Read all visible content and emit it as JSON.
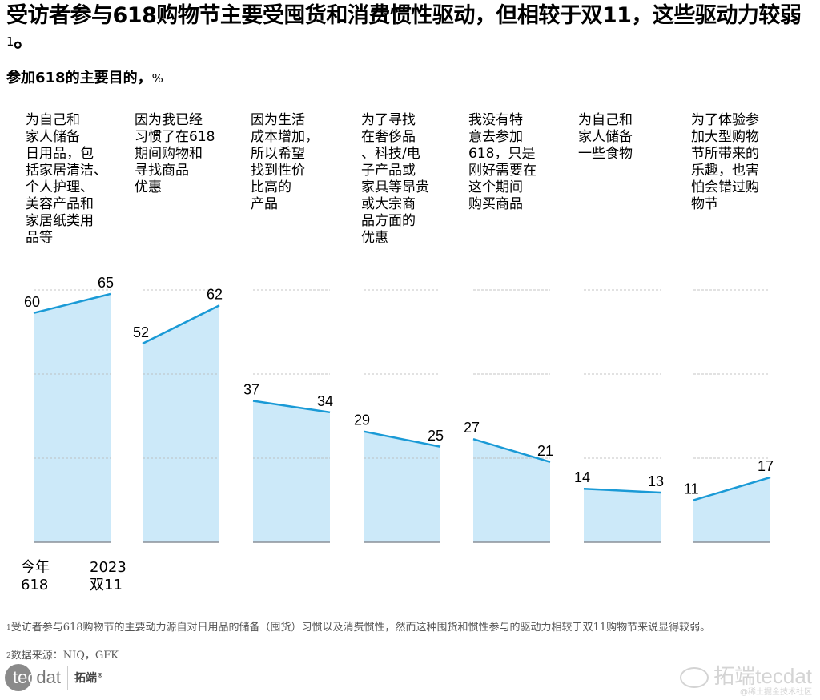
{
  "header": {
    "title": "受访者参与618购物节主要受囤货和消费惯性驱动，但相较于双11，这些驱动力较弱",
    "title_sup": "1",
    "title_end": "。",
    "subtitle": "参加618的主要目的，",
    "subtitle_unit": "%"
  },
  "chart_data": {
    "type": "area",
    "title": "参加618的主要目的，%",
    "xlabel": "",
    "ylabel": "%",
    "ylim": [
      0,
      70
    ],
    "grid": true,
    "series_names": [
      "今年 618",
      "2023 双11"
    ],
    "categories": [
      "为自己和\n家人储备\n日用品，包\n括家居清洁、\n个人护理、\n美容产品和\n家居纸类用\n品等",
      "因为我已经\n习惯了在618\n期间购物和\n寻找商品\n优惠",
      "因为生活\n成本增加，\n所以希望\n找到性价\n比高的\n产品",
      "为了寻找\n在奢侈品\n、科技/电\n子产品或\n家具等昂贵\n或大宗商\n品方面的\n优惠",
      "我没有特\n意去参加\n618，只是\n刚好需要在\n这个期间\n购买商品",
      "为自己和\n家人储备\n一些食物",
      "为了体验参\n加大型购物\n节所带来的\n乐趣，也害\n怕会错过购\n物节"
    ],
    "series": [
      {
        "name": "今年 618",
        "values": [
          60,
          52,
          37,
          29,
          27,
          14,
          11
        ]
      },
      {
        "name": "2023 双11",
        "values": [
          65,
          62,
          34,
          25,
          21,
          13,
          17
        ]
      }
    ],
    "colors": {
      "fill": "#cce9f9",
      "line": "#1a9ad6",
      "grid": "#b8b8b8",
      "baseline": "#8a9099"
    }
  },
  "legend": {
    "left_label": "今年\n618",
    "right_label": "2023\n双11"
  },
  "footnotes": {
    "note1_sup": "1",
    "note1": "受访者参与618购物节的主要动力源自对日用品的储备（囤货）习惯以及消费惯性，然而这种囤货和惯性参与的驱动力相较于双11购物节来说显得较弱。",
    "note2_sup": "2",
    "note2": "数据来源：NIQ，GFK"
  },
  "logo": {
    "tec": "tec",
    "dat": "dat",
    "cn": "拓端",
    "reg": "®"
  },
  "watermark": {
    "main": "拓端tecdat",
    "sub": "@稀土掘金技术社区"
  }
}
